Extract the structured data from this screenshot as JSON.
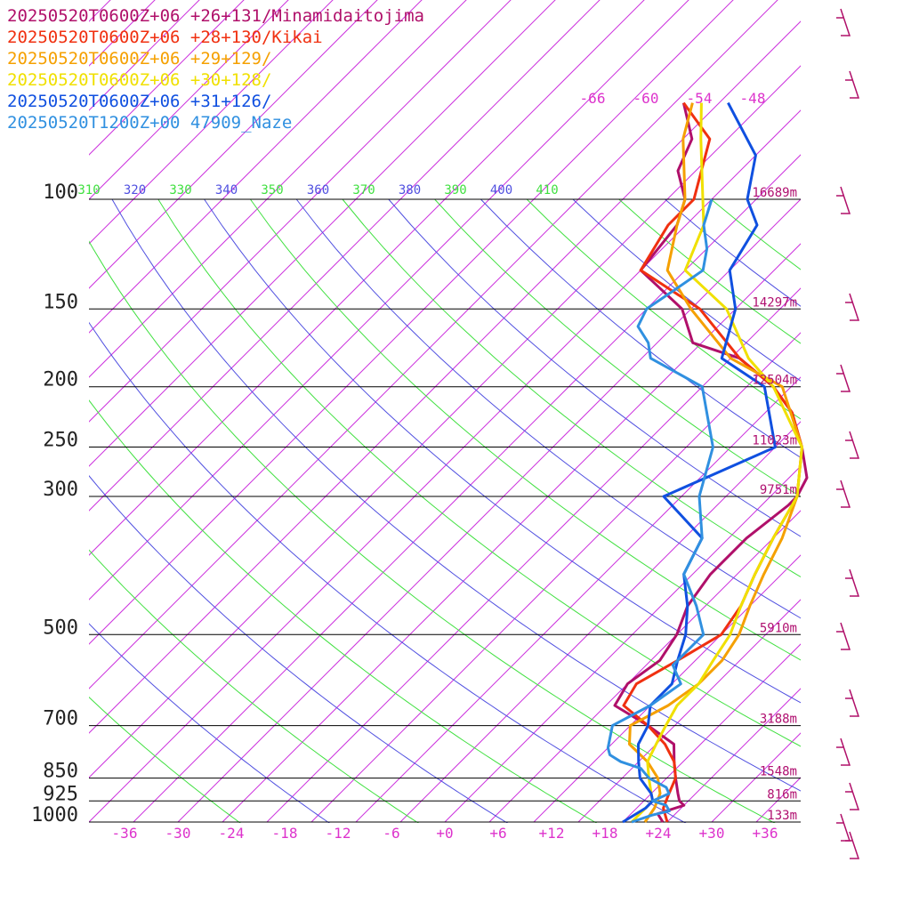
{
  "legend": [
    {
      "label": "20250520T0600Z+06 +26+131/Minamidaitojima",
      "color": "#b0106a"
    },
    {
      "label": "20250520T0600Z+06 +28+130/Kikai",
      "color": "#f03010"
    },
    {
      "label": "20250520T0600Z+06 +29+129/",
      "color": "#f5a000"
    },
    {
      "label": "20250520T0600Z+06 +30+128/",
      "color": "#f0e000"
    },
    {
      "label": "20250520T0600Z+06 +31+126/",
      "color": "#1050e0"
    },
    {
      "label": "20250520T1200Z+00 47909_Naze",
      "color": "#3090e0"
    }
  ],
  "chart_data": {
    "type": "line",
    "pressure_levels": [
      {
        "p": 100,
        "label": "100",
        "height": "16689m"
      },
      {
        "p": 150,
        "label": "150",
        "height": "14297m"
      },
      {
        "p": 200,
        "label": "200",
        "height": "12504m"
      },
      {
        "p": 250,
        "label": "250",
        "height": "11023m"
      },
      {
        "p": 300,
        "label": "300",
        "height": "9751m"
      },
      {
        "p": 500,
        "label": "500",
        "height": "5910m"
      },
      {
        "p": 700,
        "label": "700",
        "height": "3188m"
      },
      {
        "p": 850,
        "label": "850",
        "height": "1548m"
      },
      {
        "p": 925,
        "label": "925",
        "height": "816m"
      },
      {
        "p": 1000,
        "label": "1000",
        "height": "133m"
      }
    ],
    "x_ticks": [
      {
        "t": -36,
        "label": "-36"
      },
      {
        "t": -30,
        "label": "-30"
      },
      {
        "t": -24,
        "label": "-24"
      },
      {
        "t": -18,
        "label": "-18"
      },
      {
        "t": -12,
        "label": "-12"
      },
      {
        "t": -6,
        "label": "-6"
      },
      {
        "t": 0,
        "label": "+0"
      },
      {
        "t": 6,
        "label": "+6"
      },
      {
        "t": 12,
        "label": "+12"
      },
      {
        "t": 18,
        "label": "+18"
      },
      {
        "t": 24,
        "label": "+24"
      },
      {
        "t": 30,
        "label": "+30"
      },
      {
        "t": 36,
        "label": "+36"
      }
    ],
    "skew_labels": [
      "-66",
      "-60",
      "-54",
      "-48"
    ],
    "theta_labels": [
      {
        "label": "310",
        "color": "#40e040"
      },
      {
        "label": "320",
        "color": "#5050e0"
      },
      {
        "label": "330",
        "color": "#40e040"
      },
      {
        "label": "340",
        "color": "#5050e0"
      },
      {
        "label": "350",
        "color": "#40e040"
      },
      {
        "label": "360",
        "color": "#5050e0"
      },
      {
        "label": "370",
        "color": "#40e040"
      },
      {
        "label": "380",
        "color": "#5050e0"
      },
      {
        "label": "390",
        "color": "#40e040"
      },
      {
        "label": "400",
        "color": "#5050e0"
      },
      {
        "label": "410",
        "color": "#40e040"
      }
    ],
    "xlim": [
      -40,
      40
    ],
    "ylim": [
      1000,
      100
    ],
    "series": [
      {
        "name": "20250520T0600Z+06 +26+131/Minamidaitojima",
        "color": "#b0106a",
        "temperature": [
          [
            1000,
            24.5
          ],
          [
            970,
            23
          ],
          [
            940,
            25
          ],
          [
            925,
            24
          ],
          [
            900,
            23
          ],
          [
            850,
            21
          ],
          [
            800,
            19
          ],
          [
            750,
            17
          ],
          [
            700,
            12
          ],
          [
            650,
            6
          ],
          [
            600,
            5
          ],
          [
            550,
            6
          ],
          [
            500,
            5
          ],
          [
            450,
            3
          ],
          [
            400,
            2
          ],
          [
            350,
            2
          ],
          [
            310,
            3
          ],
          [
            300,
            3
          ],
          [
            280,
            2
          ],
          [
            250,
            -2
          ],
          [
            220,
            -7
          ],
          [
            200,
            -12
          ],
          [
            180,
            -19
          ],
          [
            170,
            -26
          ],
          [
            150,
            -31
          ],
          [
            130,
            -40
          ],
          [
            110,
            -41
          ],
          [
            100,
            -43
          ],
          [
            90,
            -47
          ],
          [
            80,
            -49
          ],
          [
            70,
            -54
          ]
        ]
      },
      {
        "name": "20250520T0600Z+06 +28+130/Kikai",
        "color": "#f03010",
        "temperature": [
          [
            1000,
            25
          ],
          [
            950,
            23
          ],
          [
            925,
            22.5
          ],
          [
            900,
            22
          ],
          [
            850,
            21
          ],
          [
            800,
            19
          ],
          [
            750,
            16
          ],
          [
            700,
            12
          ],
          [
            650,
            7
          ],
          [
            600,
            6
          ],
          [
            550,
            8
          ],
          [
            500,
            10
          ],
          [
            450,
            9
          ],
          [
            400,
            7
          ],
          [
            350,
            5
          ],
          [
            300,
            3
          ],
          [
            250,
            -2
          ],
          [
            220,
            -7
          ],
          [
            200,
            -12
          ],
          [
            180,
            -19
          ],
          [
            150,
            -29
          ],
          [
            130,
            -40
          ],
          [
            110,
            -42
          ],
          [
            100,
            -42
          ],
          [
            80,
            -47
          ],
          [
            70,
            -54
          ]
        ]
      },
      {
        "name": "20250520T0600Z+06 +29+129/",
        "color": "#f5a000",
        "temperature": [
          [
            1000,
            22.5
          ],
          [
            950,
            22
          ],
          [
            925,
            21.5
          ],
          [
            900,
            21
          ],
          [
            850,
            19
          ],
          [
            800,
            16
          ],
          [
            750,
            12
          ],
          [
            700,
            10
          ],
          [
            650,
            12
          ],
          [
            600,
            13
          ],
          [
            550,
            13
          ],
          [
            500,
            12
          ],
          [
            450,
            10
          ],
          [
            400,
            8
          ],
          [
            350,
            6
          ],
          [
            300,
            3
          ],
          [
            250,
            -2
          ],
          [
            200,
            -11
          ],
          [
            180,
            -20
          ],
          [
            150,
            -30
          ],
          [
            130,
            -37
          ],
          [
            110,
            -41
          ],
          [
            100,
            -43
          ],
          [
            80,
            -50
          ],
          [
            70,
            -53
          ]
        ]
      },
      {
        "name": "20250520T0600Z+06 +30+128/",
        "color": "#f0e000",
        "temperature": [
          [
            1000,
            21
          ],
          [
            950,
            21
          ],
          [
            925,
            21
          ],
          [
            900,
            20
          ],
          [
            850,
            18
          ],
          [
            800,
            16
          ],
          [
            750,
            15
          ],
          [
            700,
            14
          ],
          [
            650,
            13
          ],
          [
            600,
            13
          ],
          [
            550,
            12
          ],
          [
            500,
            11
          ],
          [
            450,
            9
          ],
          [
            400,
            7
          ],
          [
            350,
            5
          ],
          [
            300,
            3
          ],
          [
            250,
            -2
          ],
          [
            200,
            -12
          ],
          [
            180,
            -18
          ],
          [
            150,
            -26
          ],
          [
            130,
            -35
          ],
          [
            110,
            -38
          ],
          [
            100,
            -41
          ],
          [
            80,
            -48
          ],
          [
            70,
            -52
          ]
        ]
      },
      {
        "name": "20250520T0600Z+06 +31+126/",
        "color": "#1050e0",
        "temperature": [
          [
            1000,
            20
          ],
          [
            950,
            21
          ],
          [
            925,
            21
          ],
          [
            900,
            20
          ],
          [
            850,
            17
          ],
          [
            800,
            15
          ],
          [
            750,
            13
          ],
          [
            700,
            12
          ],
          [
            650,
            10
          ],
          [
            600,
            10
          ],
          [
            550,
            8
          ],
          [
            500,
            6
          ],
          [
            450,
            3
          ],
          [
            400,
            -1
          ],
          [
            350,
            -3
          ],
          [
            300,
            -12
          ],
          [
            250,
            -5
          ],
          [
            200,
            -13
          ],
          [
            180,
            -21
          ],
          [
            150,
            -25
          ],
          [
            130,
            -30
          ],
          [
            110,
            -32
          ],
          [
            100,
            -36
          ],
          [
            85,
            -40
          ],
          [
            70,
            -49
          ]
        ]
      },
      {
        "name": "20250520T1200Z+00 47909_Naze",
        "color": "#3090e0",
        "temperature": [
          [
            1000,
            21
          ],
          [
            975,
            22.5
          ],
          [
            960,
            24
          ],
          [
            940,
            23
          ],
          [
            925,
            21
          ],
          [
            900,
            22
          ],
          [
            880,
            21
          ],
          [
            850,
            18
          ],
          [
            820,
            16
          ],
          [
            800,
            13
          ],
          [
            780,
            11
          ],
          [
            760,
            10
          ],
          [
            700,
            8
          ],
          [
            650,
            10
          ],
          [
            600,
            11
          ],
          [
            560,
            8
          ],
          [
            530,
            8
          ],
          [
            500,
            8
          ],
          [
            450,
            4
          ],
          [
            400,
            -1
          ],
          [
            350,
            -3
          ],
          [
            300,
            -8
          ],
          [
            250,
            -12
          ],
          [
            200,
            -20
          ],
          [
            180,
            -29
          ],
          [
            170,
            -31
          ],
          [
            160,
            -34
          ],
          [
            150,
            -35
          ],
          [
            140,
            -34
          ],
          [
            130,
            -33
          ],
          [
            120,
            -35
          ],
          [
            110,
            -38
          ],
          [
            100,
            -40
          ]
        ]
      }
    ]
  }
}
